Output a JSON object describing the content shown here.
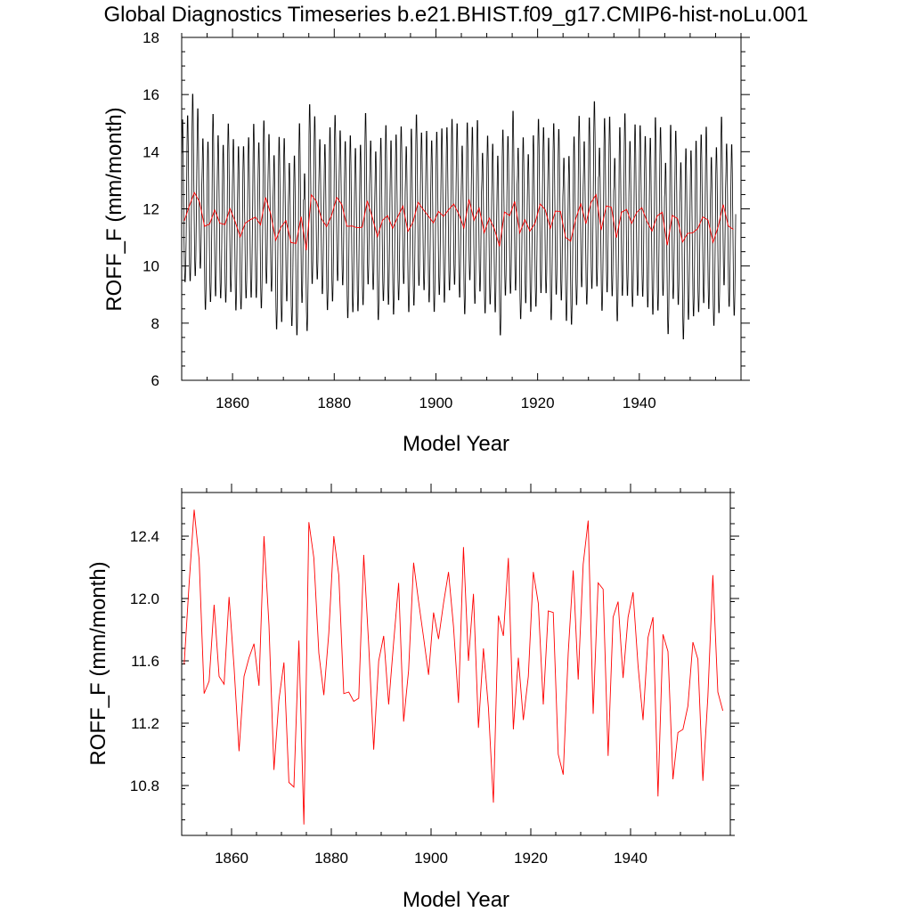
{
  "title": "Global Diagnostics Timeseries b.e21.BHIST.f09_g17.CMIP6-hist-noLu.001",
  "chart_data": [
    {
      "type": "line",
      "xlabel": "Model Year",
      "ylabel": "ROFF_F (mm/month)",
      "xlim": [
        1850,
        1960
      ],
      "ylim": [
        6,
        18
      ],
      "xticks": [
        1860,
        1880,
        1900,
        1920,
        1940
      ],
      "yticks": [
        6,
        8,
        10,
        12,
        14,
        16,
        18
      ],
      "ytick_labels": [
        "6",
        "8",
        "10",
        "12",
        "14",
        "16",
        "18"
      ],
      "series": [
        {
          "color": "#000000",
          "kind": "monthly",
          "annual_mean_source": "annual_mean",
          "amplitude_high": [
            3.7,
            3.3,
            3.6,
            3.4,
            3.2,
            3.0,
            3.5,
            3.2,
            2.9,
            3.1,
            3.0,
            3.3,
            2.8,
            3.0,
            3.4,
            3.0,
            2.8,
            2.9,
            3.1,
            3.3,
            3.0,
            2.9,
            3.2,
            3.4,
            2.8,
            3.3,
            3.1,
            2.9,
            3.0,
            3.2,
            3.0,
            2.7,
            3.1,
            3.3,
            2.9,
            3.0,
            3.2,
            2.8,
            3.1,
            3.0,
            3.3,
            3.2,
            3.0,
            2.9,
            3.1,
            3.4,
            3.2,
            2.8,
            3.1,
            3.0,
            2.9,
            3.2,
            3.0,
            3.1,
            3.3,
            3.0,
            2.8,
            3.4,
            3.2,
            2.9,
            3.0,
            3.1,
            3.3,
            3.0,
            2.9,
            3.3,
            3.1,
            3.0,
            2.8,
            3.2,
            3.1,
            3.0,
            3.3,
            3.2,
            3.0,
            2.9,
            3.1,
            3.0,
            3.2,
            3.0,
            3.1,
            3.4,
            3.0,
            3.2,
            3.3,
            2.9,
            3.1,
            3.5,
            3.0,
            3.2,
            3.0,
            3.1,
            3.4,
            3.6,
            3.1,
            3.0,
            3.3,
            3.2,
            2.9,
            3.1,
            3.0,
            3.2,
            3.0,
            3.4,
            3.1,
            2.9,
            3.2,
            3.0,
            3.1
          ],
          "amplitude_low": [
            2.2,
            2.7,
            3.0,
            2.4,
            3.0,
            2.8,
            3.1,
            2.7,
            2.8,
            3.0,
            3.2,
            2.6,
            2.7,
            2.8,
            2.9,
            3.0,
            3.1,
            2.8,
            3.2,
            3.4,
            2.9,
            3.0,
            3.3,
            3.1,
            2.9,
            3.2,
            2.8,
            2.7,
            3.0,
            3.1,
            3.0,
            2.9,
            3.3,
            3.1,
            3.0,
            2.8,
            3.0,
            2.6,
            3.0,
            2.9,
            3.2,
            3.1,
            3.0,
            2.8,
            2.9,
            3.0,
            3.0,
            2.9,
            3.1,
            3.2,
            3.0,
            3.1,
            2.9,
            2.9,
            3.0,
            3.1,
            2.9,
            3.0,
            3.0,
            2.9,
            3.1,
            3.0,
            3.2,
            3.0,
            2.8,
            3.2,
            3.1,
            3.0,
            2.9,
            3.0,
            3.2,
            3.0,
            3.3,
            3.0,
            3.2,
            3.0,
            3.0,
            3.1,
            3.0,
            2.9,
            3.1,
            3.3,
            2.9,
            3.1,
            3.2,
            3.0,
            3.0,
            3.1,
            3.0,
            3.0,
            3.2,
            3.1,
            3.0,
            3.4,
            3.0,
            3.2,
            3.0,
            3.1,
            3.5,
            3.1,
            3.0,
            3.0,
            3.1,
            3.2,
            3.0,
            3.1,
            2.9,
            2.9,
            3.1
          ]
        },
        {
          "color": "#ff0000",
          "kind": "annual_mean",
          "x_start": 1850.5,
          "x_step": 1,
          "values": [
            11.58,
            12.1,
            12.57,
            12.25,
            11.39,
            11.47,
            11.96,
            11.5,
            11.45,
            12.01,
            11.56,
            11.02,
            11.5,
            11.62,
            11.71,
            11.44,
            12.4,
            11.83,
            10.9,
            11.35,
            11.59,
            10.82,
            10.79,
            11.73,
            10.55,
            12.49,
            12.26,
            11.65,
            11.38,
            11.78,
            12.4,
            12.15,
            11.39,
            11.4,
            11.34,
            11.36,
            12.28,
            11.7,
            11.03,
            11.6,
            11.76,
            11.32,
            11.72,
            12.1,
            11.21,
            11.54,
            12.23,
            11.98,
            11.75,
            11.51,
            11.91,
            11.74,
            11.97,
            12.17,
            11.82,
            11.33,
            12.33,
            11.6,
            12.03,
            11.17,
            11.68,
            11.3,
            10.69,
            11.89,
            11.76,
            12.26,
            11.16,
            11.62,
            11.22,
            11.5,
            12.17,
            11.97,
            11.32,
            11.92,
            11.91,
            11.0,
            10.87,
            11.65,
            12.18,
            11.48,
            12.22,
            12.5,
            11.26,
            12.1,
            12.06,
            10.99,
            11.88,
            11.98,
            11.49,
            11.88,
            12.04,
            11.57,
            11.22,
            11.75,
            11.88,
            10.73,
            11.77,
            11.66,
            10.84,
            11.14,
            11.16,
            11.31,
            11.72,
            11.61,
            10.83,
            11.37,
            12.15,
            11.4,
            11.28
          ]
        }
      ]
    },
    {
      "type": "line",
      "xlabel": "Model Year",
      "ylabel": "ROFF_F (mm/month)",
      "xlim": [
        1850,
        1960
      ],
      "ylim": [
        10.48,
        12.68
      ],
      "xticks": [
        1860,
        1880,
        1900,
        1920,
        1940
      ],
      "yticks": [
        10.8,
        11.2,
        11.6,
        12.0,
        12.4
      ],
      "ytick_labels": [
        "10.8",
        "11.2",
        "11.6",
        "12.0",
        "12.4"
      ],
      "series": [
        {
          "color": "#ff0000",
          "kind": "annual_mean",
          "values_source": "0.1"
        }
      ]
    }
  ]
}
